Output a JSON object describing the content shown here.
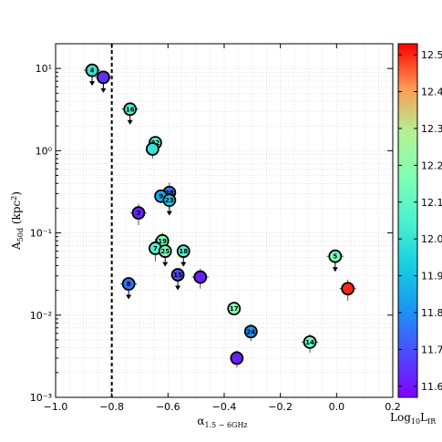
{
  "chart_data": {
    "type": "scatter",
    "title": "",
    "xlabel": "α1.5−6GHz",
    "ylabel": "A50d (kpc²)",
    "xlim": [
      -1.0,
      0.2
    ],
    "ylim": [
      0.001,
      20
    ],
    "yscale": "log",
    "x_ticks": [
      "−1.0",
      "−0.8",
      "−0.6",
      "−0.4",
      "−0.2",
      "0.0",
      "0.2"
    ],
    "y_ticks": [
      "10⁻³",
      "10⁻²",
      "10⁻¹",
      "10⁰",
      "10¹"
    ],
    "grid": true,
    "vertical_line_x": -0.8,
    "colorbar": {
      "label": "Log10LIR",
      "min": 11.57,
      "max": 12.53,
      "ticks": [
        "11.6",
        "11.7",
        "11.8",
        "11.9",
        "12.0",
        "12.1",
        "12.2",
        "12.3",
        "12.4",
        "12.5"
      ]
    },
    "points": [
      {
        "label": "4",
        "x": -0.87,
        "y": 9.5,
        "c": 12.0,
        "upper_limit": true,
        "xerr": 0.03,
        "yerr": 0
      },
      {
        "label": "",
        "x": -0.83,
        "y": 7.8,
        "c": 11.65,
        "upper_limit": true,
        "xerr": 0.03,
        "yerr": 0
      },
      {
        "label": "16",
        "x": -0.735,
        "y": 3.2,
        "c": 12.05,
        "upper_limit": true,
        "xerr": 0.03,
        "yerr": 0
      },
      {
        "label": "22",
        "x": -0.645,
        "y": 1.25,
        "c": 12.05,
        "upper_limit": false,
        "xerr": 0.02,
        "yerr": 0.2
      },
      {
        "label": "",
        "x": -0.655,
        "y": 1.05,
        "c": 12.0,
        "upper_limit": false,
        "xerr": 0.02,
        "yerr": 0.25
      },
      {
        "label": "28",
        "x": -0.595,
        "y": 0.31,
        "c": 11.75,
        "upper_limit": true,
        "xerr": 0.02,
        "yerr": 0.1
      },
      {
        "label": "9",
        "x": -0.625,
        "y": 0.28,
        "c": 11.85,
        "upper_limit": false,
        "xerr": 0.02,
        "yerr": 0.05
      },
      {
        "label": "23",
        "x": -0.595,
        "y": 0.25,
        "c": 11.9,
        "upper_limit": true,
        "xerr": 0.02,
        "yerr": 0.05
      },
      {
        "label": "3",
        "x": -0.705,
        "y": 0.175,
        "c": 11.62,
        "upper_limit": false,
        "xerr": 0.03,
        "yerr": 0.05
      },
      {
        "label": "19",
        "x": -0.62,
        "y": 0.08,
        "c": 12.15,
        "upper_limit": true,
        "xerr": 0.02,
        "yerr": 0.02
      },
      {
        "label": "7",
        "x": -0.645,
        "y": 0.065,
        "c": 12.05,
        "upper_limit": false,
        "xerr": 0.02,
        "yerr": 0.02
      },
      {
        "label": "25",
        "x": -0.61,
        "y": 0.06,
        "c": 12.15,
        "upper_limit": true,
        "xerr": 0.02,
        "yerr": 0.01
      },
      {
        "label": "18",
        "x": -0.545,
        "y": 0.06,
        "c": 12.05,
        "upper_limit": true,
        "xerr": 0.02,
        "yerr": 0.01
      },
      {
        "label": "15",
        "x": -0.565,
        "y": 0.031,
        "c": 11.68,
        "upper_limit": true,
        "xerr": 0.02,
        "yerr": 0.005
      },
      {
        "label": "",
        "x": -0.485,
        "y": 0.029,
        "c": 11.62,
        "upper_limit": false,
        "xerr": 0.03,
        "yerr": 0.008
      },
      {
        "label": "8",
        "x": -0.74,
        "y": 0.024,
        "c": 11.75,
        "upper_limit": true,
        "xerr": 0.03,
        "yerr": 0.003
      },
      {
        "label": "17",
        "x": -0.365,
        "y": 0.012,
        "c": 12.2,
        "upper_limit": false,
        "xerr": 0.02,
        "yerr": 0.002
      },
      {
        "label": "24",
        "x": -0.305,
        "y": 0.0063,
        "c": 11.8,
        "upper_limit": false,
        "xerr": 0.02,
        "yerr": 0.0015
      },
      {
        "label": "",
        "x": -0.355,
        "y": 0.003,
        "c": 11.62,
        "upper_limit": false,
        "xerr": 0.02,
        "yerr": 0.0007
      },
      {
        "label": "14",
        "x": -0.095,
        "y": 0.0047,
        "c": 12.1,
        "upper_limit": false,
        "xerr": 0.03,
        "yerr": 0.0012
      },
      {
        "label": "5",
        "x": -0.005,
        "y": 0.052,
        "c": 12.15,
        "upper_limit": true,
        "xerr": 0.03,
        "yerr": 0.005
      },
      {
        "label": "",
        "x": 0.04,
        "y": 0.021,
        "c": 12.5,
        "upper_limit": false,
        "xerr": 0.03,
        "yerr": 0.006
      }
    ]
  }
}
